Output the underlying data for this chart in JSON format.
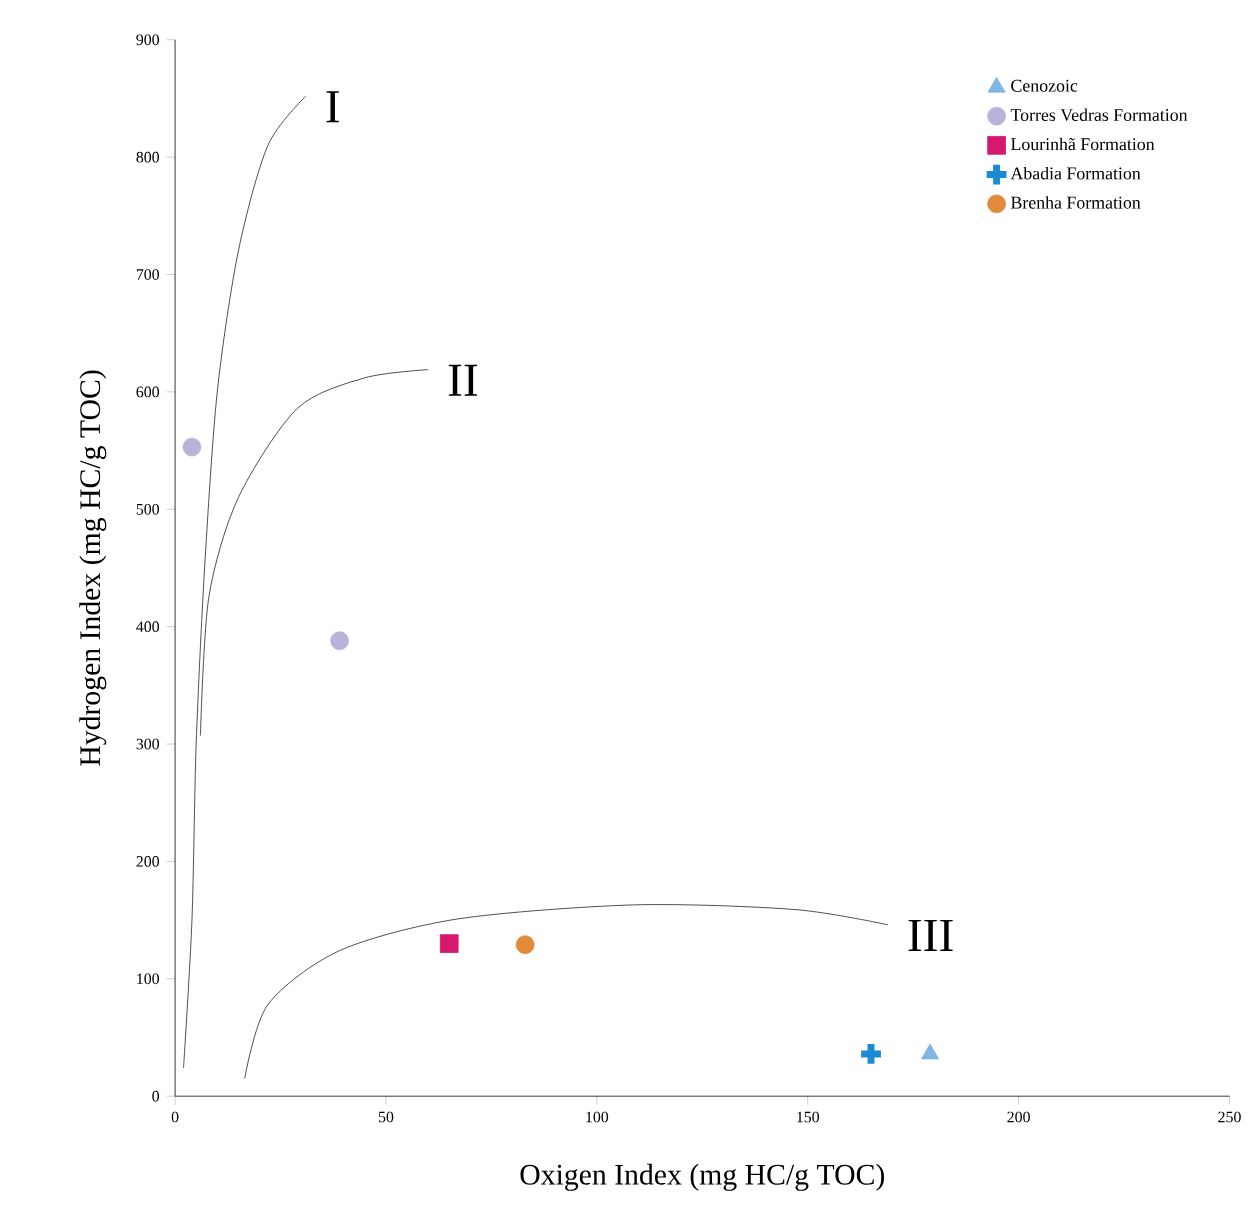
{
  "chart_data": {
    "type": "scatter",
    "xlabel": "Oxigen Index (mg HC/g TOC)",
    "ylabel": "Hydrogen Index (mg HC/g TOC)",
    "xlim": [
      0,
      250
    ],
    "ylim": [
      0,
      900
    ],
    "xticks": [
      0,
      50,
      100,
      150,
      200,
      250
    ],
    "yticks": [
      0,
      100,
      200,
      300,
      400,
      500,
      600,
      700,
      800,
      900
    ],
    "grid": false,
    "legend": "top right",
    "series": [
      {
        "name": "Cenozoic",
        "color": "#7fb6e3",
        "marker": "triangle",
        "x": [
          179
        ],
        "values": [
          36
        ]
      },
      {
        "name": "Torres Vedras Formation",
        "color": "#b9b2d9",
        "marker": "circle",
        "x": [
          4,
          39
        ],
        "values": [
          553,
          388
        ]
      },
      {
        "name": "Lourinhã Formation",
        "color": "#d6186f",
        "marker": "square",
        "x": [
          65
        ],
        "values": [
          130
        ]
      },
      {
        "name": "Abadia Formation",
        "color": "#1a8ad4",
        "marker": "cross",
        "x": [
          165
        ],
        "values": [
          36
        ]
      },
      {
        "name": "Brenha Formation",
        "color": "#e08a3a",
        "marker": "circle",
        "x": [
          83
        ],
        "values": [
          129
        ]
      },
      {
        "type": "line",
        "color": "#222222",
        "marker": "none",
        "x": [
          2,
          4,
          5,
          7,
          10,
          15,
          22,
          31
        ],
        "values": [
          24,
          150,
          300,
          450,
          600,
          720,
          810,
          852
        ]
      },
      {
        "type": "line",
        "color": "#222222",
        "marker": "none",
        "x": [
          6,
          8,
          15,
          29,
          45,
          60
        ],
        "values": [
          307,
          425,
          510,
          586,
          612,
          619
        ]
      },
      {
        "type": "line",
        "color": "#222222",
        "marker": "none",
        "x": [
          16.5,
          22,
          39,
          67,
          109,
          147,
          169
        ],
        "values": [
          15,
          78,
          124,
          151,
          163,
          159,
          146
        ]
      }
    ],
    "annotations": [
      "I",
      "II",
      "III"
    ]
  }
}
